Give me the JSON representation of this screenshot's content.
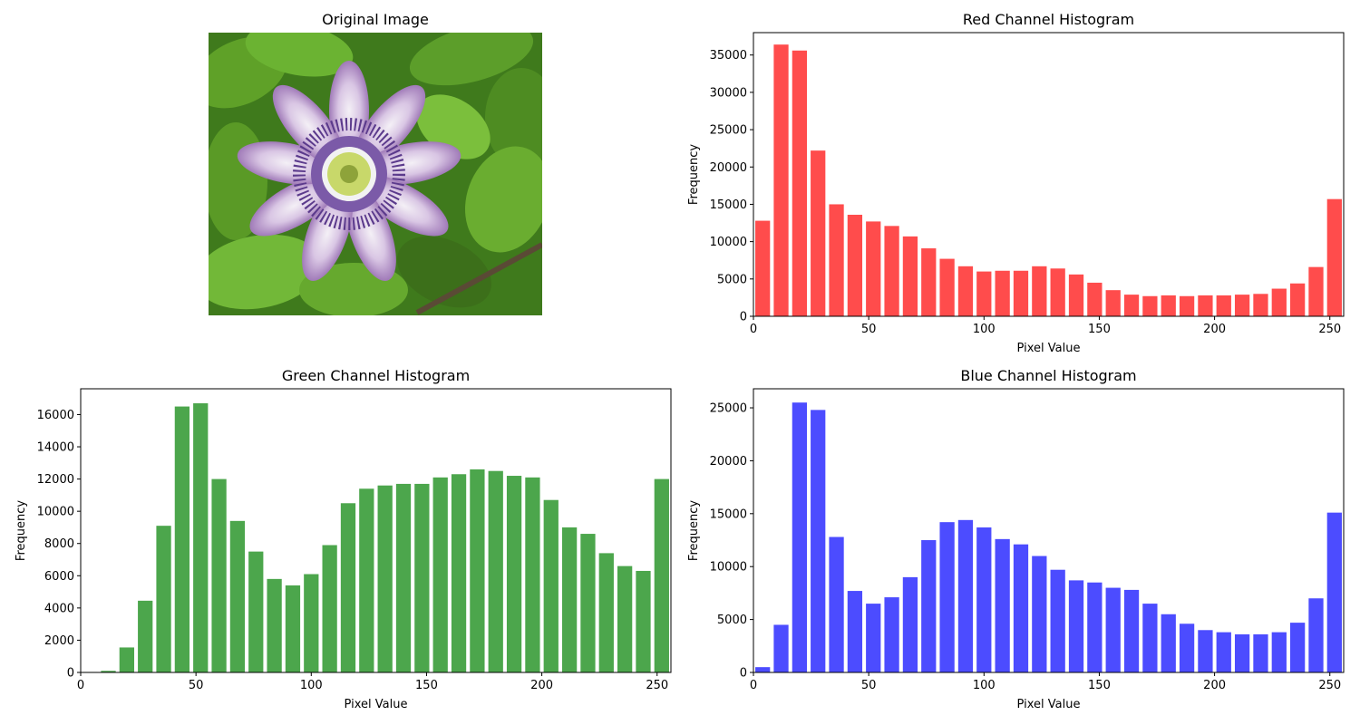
{
  "image_panel": {
    "title": "Original Image"
  },
  "chart_data": [
    {
      "type": "bar",
      "title": "Red Channel Histogram",
      "xlabel": "Pixel Value",
      "ylabel": "Frequency",
      "color": "#ff0000",
      "alpha": 0.7,
      "xlim": [
        0,
        256
      ],
      "ylim": [
        0,
        38000
      ],
      "xticks": [
        0,
        50,
        100,
        150,
        200,
        250
      ],
      "yticks": [
        0,
        5000,
        10000,
        15000,
        20000,
        25000,
        30000,
        35000
      ],
      "bin_starts": [
        0,
        8,
        16,
        24,
        32,
        40,
        48,
        56,
        64,
        72,
        80,
        88,
        96,
        104,
        112,
        120,
        128,
        136,
        144,
        152,
        160,
        168,
        176,
        184,
        192,
        200,
        208,
        216,
        224,
        232,
        240,
        248
      ],
      "bin_width": 8,
      "values": [
        12800,
        36400,
        35600,
        22200,
        15000,
        13600,
        12700,
        12100,
        10700,
        9100,
        7700,
        6700,
        6000,
        6100,
        6100,
        6700,
        6400,
        5600,
        4500,
        3500,
        2900,
        2700,
        2800,
        2700,
        2800,
        2800,
        2900,
        3000,
        3700,
        4400,
        6600,
        15700
      ]
    },
    {
      "type": "bar",
      "title": "Green Channel Histogram",
      "xlabel": "Pixel Value",
      "ylabel": "Frequency",
      "color": "#008000",
      "alpha": 0.7,
      "xlim": [
        0,
        256
      ],
      "ylim": [
        0,
        17600
      ],
      "xticks": [
        0,
        50,
        100,
        150,
        200,
        250
      ],
      "yticks": [
        0,
        2000,
        4000,
        6000,
        8000,
        10000,
        12000,
        14000,
        16000
      ],
      "bin_starts": [
        0,
        8,
        16,
        24,
        32,
        40,
        48,
        56,
        64,
        72,
        80,
        88,
        96,
        104,
        112,
        120,
        128,
        136,
        144,
        152,
        160,
        168,
        176,
        184,
        192,
        200,
        208,
        216,
        224,
        232,
        240,
        248
      ],
      "bin_width": 8,
      "values": [
        30,
        100,
        1550,
        4450,
        9100,
        16500,
        16700,
        12000,
        9400,
        7500,
        5800,
        5400,
        6100,
        7900,
        10500,
        11400,
        11600,
        11700,
        11700,
        12100,
        12300,
        12600,
        12500,
        12200,
        12100,
        10700,
        9000,
        8600,
        7400,
        6600,
        6300,
        12000
      ]
    },
    {
      "type": "bar",
      "title": "Blue Channel Histogram",
      "xlabel": "Pixel Value",
      "ylabel": "Frequency",
      "color": "#0000ff",
      "alpha": 0.7,
      "xlim": [
        0,
        256
      ],
      "ylim": [
        0,
        26800
      ],
      "xticks": [
        0,
        50,
        100,
        150,
        200,
        250
      ],
      "yticks": [
        0,
        5000,
        10000,
        15000,
        20000,
        25000
      ],
      "bin_starts": [
        0,
        8,
        16,
        24,
        32,
        40,
        48,
        56,
        64,
        72,
        80,
        88,
        96,
        104,
        112,
        120,
        128,
        136,
        144,
        152,
        160,
        168,
        176,
        184,
        192,
        200,
        208,
        216,
        224,
        232,
        240,
        248
      ],
      "bin_width": 8,
      "values": [
        500,
        4500,
        25500,
        24800,
        12800,
        7700,
        6500,
        7100,
        9000,
        12500,
        14200,
        14400,
        13700,
        12600,
        12100,
        11000,
        9700,
        8700,
        8500,
        8000,
        7800,
        6500,
        5500,
        4600,
        4000,
        3800,
        3600,
        3600,
        3800,
        4700,
        7000,
        15100
      ]
    }
  ]
}
